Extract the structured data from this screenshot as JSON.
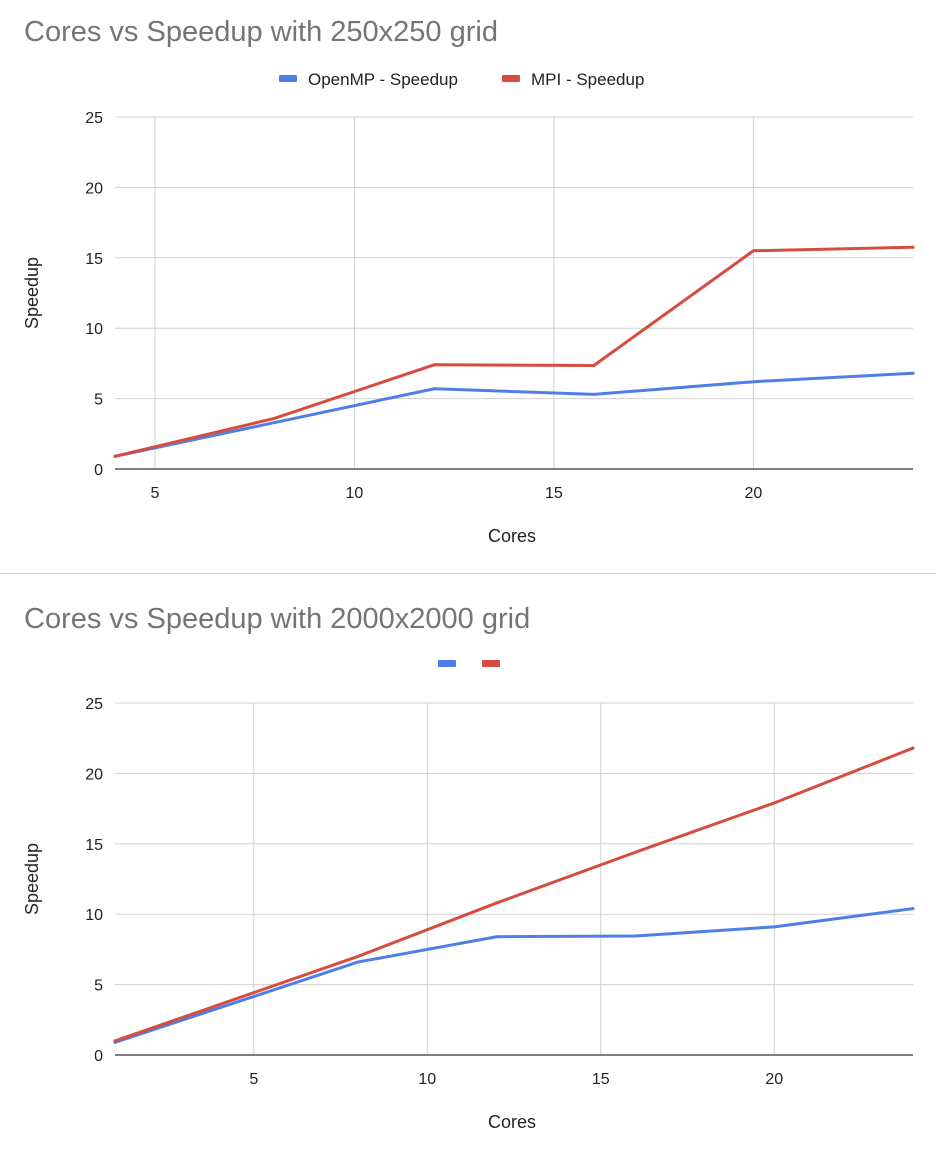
{
  "chart_data": [
    {
      "type": "line",
      "title": "Cores vs Speedup with 250x250 grid",
      "xlabel": "Cores",
      "ylabel": "Speedup",
      "xlim": [
        4,
        24
      ],
      "ylim": [
        0,
        25
      ],
      "x_ticks": [
        "5",
        "10",
        "15",
        "20"
      ],
      "y_ticks": [
        "0",
        "5",
        "10",
        "15",
        "20",
        "25"
      ],
      "grid": true,
      "legend_position": "top",
      "series": [
        {
          "name": "OpenMP - Speedup",
          "color": "#4f7fe6",
          "x": [
            4,
            8,
            12,
            16,
            20,
            24
          ],
          "values": [
            0.9,
            3.3,
            5.7,
            5.3,
            6.2,
            6.8
          ]
        },
        {
          "name": "MPI - Speedup",
          "color": "#d64d3f",
          "x": [
            4,
            8,
            12,
            16,
            20,
            24
          ],
          "values": [
            0.9,
            3.6,
            7.4,
            7.35,
            15.5,
            15.75
          ]
        }
      ]
    },
    {
      "type": "line",
      "title": "Cores vs Speedup with 2000x2000 grid",
      "xlabel": "Cores",
      "ylabel": "Speedup",
      "xlim": [
        1,
        24
      ],
      "ylim": [
        0,
        25
      ],
      "x_ticks": [
        "5",
        "10",
        "15",
        "20"
      ],
      "y_ticks": [
        "0",
        "5",
        "10",
        "15",
        "20",
        "25"
      ],
      "grid": true,
      "legend_position": "top",
      "series": [
        {
          "color": "#4f7fe6",
          "x": [
            1,
            8,
            12,
            16,
            20,
            24
          ],
          "values": [
            0.9,
            6.6,
            8.4,
            8.45,
            9.1,
            10.4
          ]
        },
        {
          "color": "#d64d3f",
          "x": [
            1,
            8,
            12,
            16,
            20,
            24
          ],
          "values": [
            1.0,
            7.0,
            10.8,
            14.4,
            17.9,
            21.8
          ]
        }
      ]
    }
  ]
}
